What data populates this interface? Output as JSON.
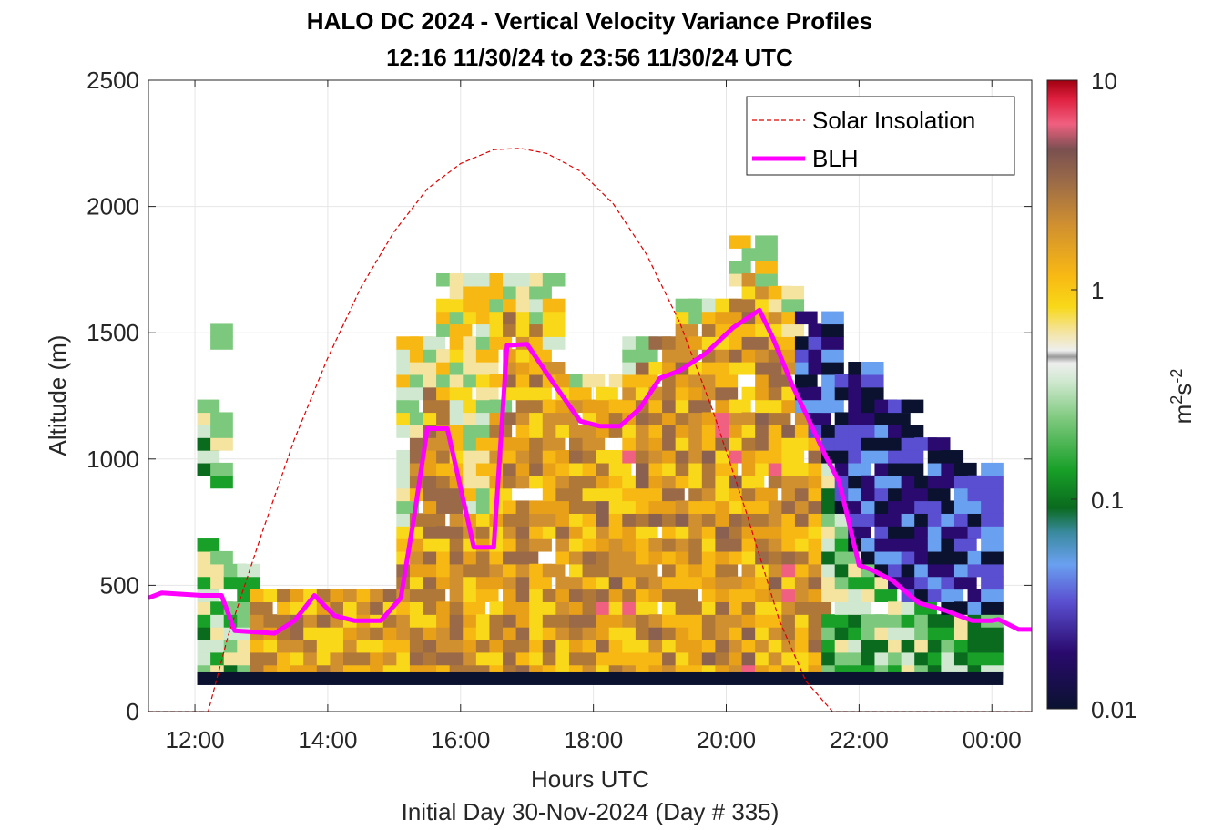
{
  "chart_data": {
    "type": "heatmap",
    "title": "HALO DC 2024 - Vertical Velocity Variance Profiles",
    "subtitle": "12:16 11/30/24 to 23:56 11/30/24  UTC",
    "xlabel": "Hours UTC",
    "ylabel": "Altitude (m)",
    "footnote": "Initial Day 30-Nov-2024 (Day # 335)",
    "xlim_hours": [
      11.3,
      24.6
    ],
    "ylim": [
      0,
      2500
    ],
    "xticks": [
      "12:00",
      "14:00",
      "16:00",
      "18:00",
      "20:00",
      "22:00",
      "00:00"
    ],
    "yticks": [
      "0",
      "500",
      "1000",
      "1500",
      "2000",
      "2500"
    ],
    "colorbar": {
      "scale": "log",
      "range": [
        0.01,
        10
      ],
      "ticks": [
        "0.01",
        "0.1",
        "1",
        "10"
      ],
      "label_base": "m",
      "label_exp1": "2",
      "label_mid": "s",
      "label_exp2": "-2"
    },
    "grid": true,
    "legend_position": "top-right",
    "series": [
      {
        "name": "Solar Insolation",
        "style": "red dashed",
        "color": "#e00000",
        "x_hours": [
          11.3,
          12.2,
          12.5,
          13.0,
          13.5,
          14.0,
          14.5,
          15.0,
          15.5,
          16.0,
          16.5,
          16.9,
          17.3,
          17.8,
          18.3,
          18.8,
          19.3,
          19.8,
          20.3,
          20.8,
          21.2,
          21.6,
          21.8,
          24.6
        ],
        "y": [
          0,
          0,
          300,
          700,
          1080,
          1400,
          1680,
          1900,
          2070,
          2170,
          2225,
          2230,
          2210,
          2140,
          2010,
          1810,
          1540,
          1190,
          790,
          360,
          120,
          0,
          0,
          0
        ]
      },
      {
        "name": "BLH",
        "style": "magenta solid",
        "color": "#ff00ff",
        "x_hours": [
          11.3,
          11.5,
          12.1,
          12.4,
          12.6,
          13.2,
          13.5,
          13.8,
          14.1,
          14.4,
          14.8,
          15.1,
          15.3,
          15.5,
          15.8,
          16.2,
          16.5,
          16.7,
          17.0,
          17.4,
          17.8,
          18.1,
          18.4,
          18.7,
          19.0,
          19.3,
          19.7,
          20.1,
          20.5,
          20.7,
          21.0,
          21.2,
          21.5,
          21.7,
          22.0,
          22.2,
          22.5,
          22.9,
          23.3,
          23.7,
          24.0,
          24.1,
          24.4,
          24.6
        ],
        "y": [
          450,
          470,
          460,
          460,
          320,
          310,
          360,
          460,
          380,
          360,
          360,
          450,
          770,
          1120,
          1120,
          650,
          650,
          1450,
          1455,
          1300,
          1150,
          1130,
          1130,
          1200,
          1320,
          1350,
          1420,
          1520,
          1590,
          1480,
          1290,
          1180,
          1010,
          910,
          580,
          560,
          520,
          430,
          400,
          360,
          360,
          365,
          325,
          325
        ]
      }
    ]
  }
}
